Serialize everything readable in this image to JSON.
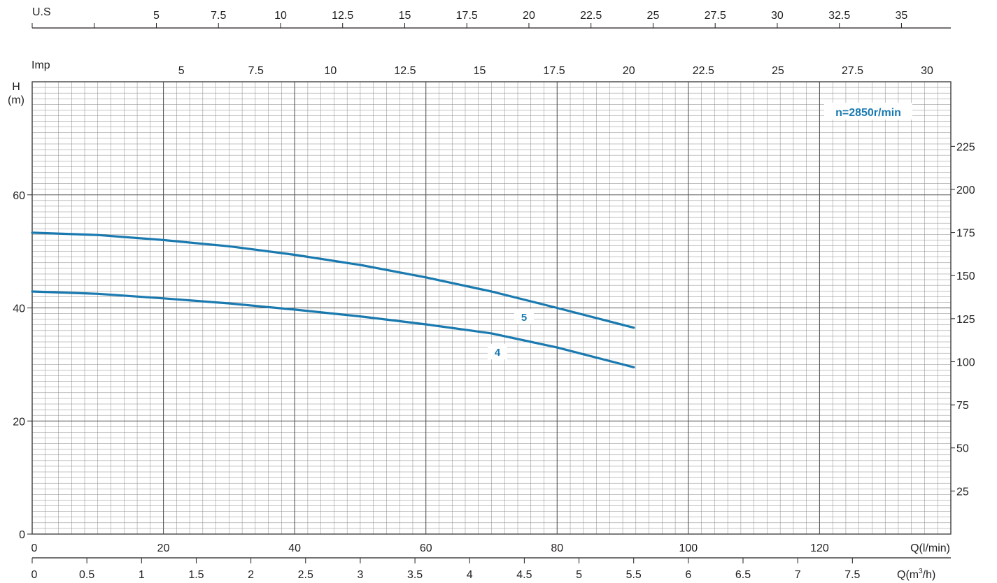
{
  "colors": {
    "curve": "#1a7ab0",
    "curve_label": "#1a7ab0",
    "grid_minor": "#888888",
    "grid_major": "#555555",
    "text": "#231f20"
  },
  "chart_data": {
    "type": "line",
    "grid": true,
    "speed_label": "n=2850r/min",
    "y_axis": {
      "label_line1": "H",
      "label_line2": "(m)",
      "ticks": [
        0,
        20,
        40,
        60
      ],
      "ylim": [
        0,
        80
      ]
    },
    "y2_axis": {
      "label": "",
      "ticks": [
        25,
        50,
        75,
        100,
        125,
        150,
        175,
        200,
        225
      ]
    },
    "x_axis_lmin": {
      "label": "Q(l/min)",
      "ticks": [
        0,
        20,
        40,
        60,
        80,
        100,
        120
      ],
      "xlim": [
        0,
        140
      ]
    },
    "x_axis_m3h": {
      "label": "Q(m³/h)",
      "label_main": "Q(m",
      "label_sup": "3",
      "label_tail": "/h)",
      "ticks": [
        0,
        0.5,
        1,
        1.5,
        2,
        2.5,
        3,
        3.5,
        4,
        4.5,
        5,
        5.5,
        6,
        6.5,
        7,
        7.5
      ]
    },
    "x_axis_us": {
      "label": "U.S",
      "ticks": [
        5,
        7.5,
        10,
        12.5,
        15,
        17.5,
        20,
        22.5,
        25,
        27.5,
        30,
        32.5,
        35
      ]
    },
    "x_axis_imp": {
      "label": "Imp",
      "ticks": [
        5,
        7.5,
        10,
        12.5,
        15,
        17.5,
        20,
        22.5,
        25,
        27.5,
        30
      ]
    },
    "series": [
      {
        "name": "5",
        "x": [
          0,
          10,
          20,
          30,
          40,
          50,
          60,
          70,
          80,
          91.7
        ],
        "y": [
          53.3,
          52.9,
          52.0,
          50.9,
          49.4,
          47.6,
          45.4,
          42.9,
          40.0,
          36.5
        ]
      },
      {
        "name": "4",
        "x": [
          0,
          10,
          20,
          30,
          40,
          50,
          60,
          70,
          80,
          91.7
        ],
        "y": [
          42.9,
          42.5,
          41.7,
          40.8,
          39.7,
          38.5,
          37.1,
          35.5,
          33.0,
          29.5
        ]
      }
    ]
  }
}
